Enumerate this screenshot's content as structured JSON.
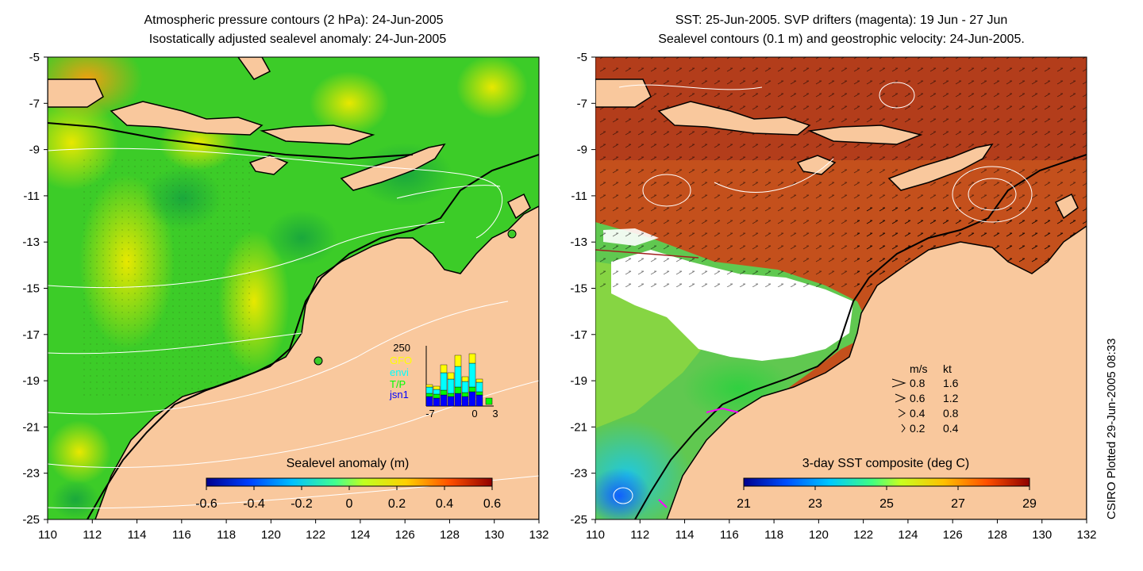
{
  "left_panel": {
    "title_line1": "Atmospheric pressure contours (2 hPa): 24-Jun-2005",
    "title_line2": "Isostatically adjusted sealevel anomaly: 24-Jun-2005",
    "colorbar_label": "Sealevel anomaly (m)",
    "colorbar_ticks": [
      "-0.6",
      "-0.4",
      "-0.2",
      "0",
      "0.2",
      "0.4",
      "0.6"
    ],
    "inset": {
      "ymax_label": "250",
      "legend": [
        "GFO",
        "envi",
        "T/P",
        "jsn1"
      ],
      "legend_colors": [
        "#ffff00",
        "#00ffff",
        "#00ff00",
        "#0000ff"
      ],
      "x_labels": [
        "-7",
        "0",
        "3"
      ]
    }
  },
  "right_panel": {
    "title_line1": "SST: 25-Jun-2005. SVP drifters (magenta): 19 Jun - 27 Jun",
    "title_line2": "Sealevel contours (0.1 m) and geostrophic velocity: 24-Jun-2005.",
    "colorbar_label": "3-day SST composite (deg C)",
    "colorbar_ticks": [
      "21",
      "23",
      "25",
      "27",
      "29"
    ],
    "velocity_key": {
      "header_ms": "m/s",
      "header_kt": "kt",
      "rows": [
        {
          "ms": "0.8",
          "kt": "1.6"
        },
        {
          "ms": "0.6",
          "kt": "1.2"
        },
        {
          "ms": "0.4",
          "kt": "0.8"
        },
        {
          "ms": "0.2",
          "kt": "0.4"
        }
      ]
    }
  },
  "axes": {
    "x_ticks": [
      "110",
      "112",
      "114",
      "116",
      "118",
      "120",
      "122",
      "124",
      "126",
      "128",
      "130",
      "132"
    ],
    "y_ticks": [
      "-5",
      "-7",
      "-9",
      "-11",
      "-13",
      "-15",
      "-17",
      "-19",
      "-21",
      "-23",
      "-25"
    ]
  },
  "credit": "CSIRO Plotted 29-Jun-2005 08:33",
  "colors": {
    "land": "#f9c89d",
    "ocean_green": "#3ccc28",
    "sst_warm": "#c4501c",
    "coast": "#000000"
  }
}
